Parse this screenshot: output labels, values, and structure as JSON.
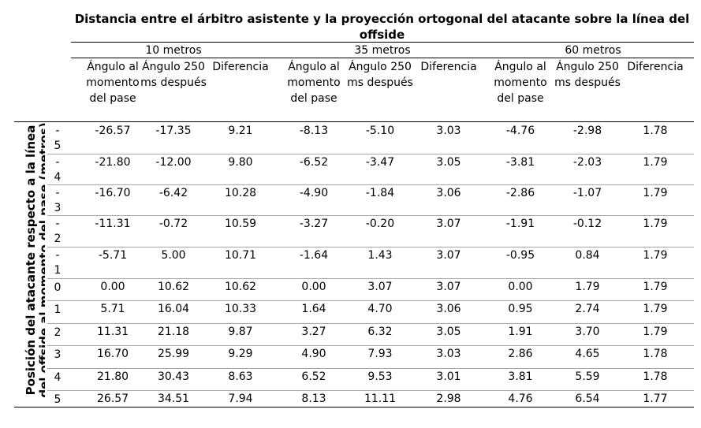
{
  "title": "Distancia entre el árbitro asistente y la proyección ortogonal del atacante sobre la línea del offside",
  "row_axis_label": "Posición del atacante respecto a la línea del offside al momento del pase (metros)",
  "groups": [
    "10 metros",
    "35 metros",
    "60 metros"
  ],
  "subheaders": [
    "Ángulo al momento del pase",
    "Ángulo 250 ms después",
    "Diferencia"
  ],
  "rows": [
    {
      "label": "-5",
      "values": [
        "-26.57",
        "-17.35",
        "9.21",
        "-8.13",
        "-5.10",
        "3.03",
        "-4.76",
        "-2.98",
        "1.78"
      ]
    },
    {
      "label": "-4",
      "values": [
        "-21.80",
        "-12.00",
        "9.80",
        "-6.52",
        "-3.47",
        "3.05",
        "-3.81",
        "-2.03",
        "1.79"
      ]
    },
    {
      "label": "-3",
      "values": [
        "-16.70",
        "-6.42",
        "10.28",
        "-4.90",
        "-1.84",
        "3.06",
        "-2.86",
        "-1.07",
        "1.79"
      ]
    },
    {
      "label": "-2",
      "values": [
        "-11.31",
        "-0.72",
        "10.59",
        "-3.27",
        "-0.20",
        "3.07",
        "-1.91",
        "-0.12",
        "1.79"
      ]
    },
    {
      "label": "-1",
      "values": [
        "-5.71",
        "5.00",
        "10.71",
        "-1.64",
        "1.43",
        "3.07",
        "-0.95",
        "0.84",
        "1.79"
      ]
    },
    {
      "label": "0",
      "values": [
        "0.00",
        "10.62",
        "10.62",
        "0.00",
        "3.07",
        "3.07",
        "0.00",
        "1.79",
        "1.79"
      ]
    },
    {
      "label": "1",
      "values": [
        "5.71",
        "16.04",
        "10.33",
        "1.64",
        "4.70",
        "3.06",
        "0.95",
        "2.74",
        "1.79"
      ]
    },
    {
      "label": "2",
      "values": [
        "11.31",
        "21.18",
        "9.87",
        "3.27",
        "6.32",
        "3.05",
        "1.91",
        "3.70",
        "1.79"
      ]
    },
    {
      "label": "3",
      "values": [
        "16.70",
        "25.99",
        "9.29",
        "4.90",
        "7.93",
        "3.03",
        "2.86",
        "4.65",
        "1.78"
      ]
    },
    {
      "label": "4",
      "values": [
        "21.80",
        "30.43",
        "8.63",
        "6.52",
        "9.53",
        "3.01",
        "3.81",
        "5.59",
        "1.78"
      ]
    },
    {
      "label": "5",
      "values": [
        "26.57",
        "34.51",
        "7.94",
        "8.13",
        "11.11",
        "2.98",
        "4.76",
        "6.54",
        "1.77"
      ]
    }
  ]
}
